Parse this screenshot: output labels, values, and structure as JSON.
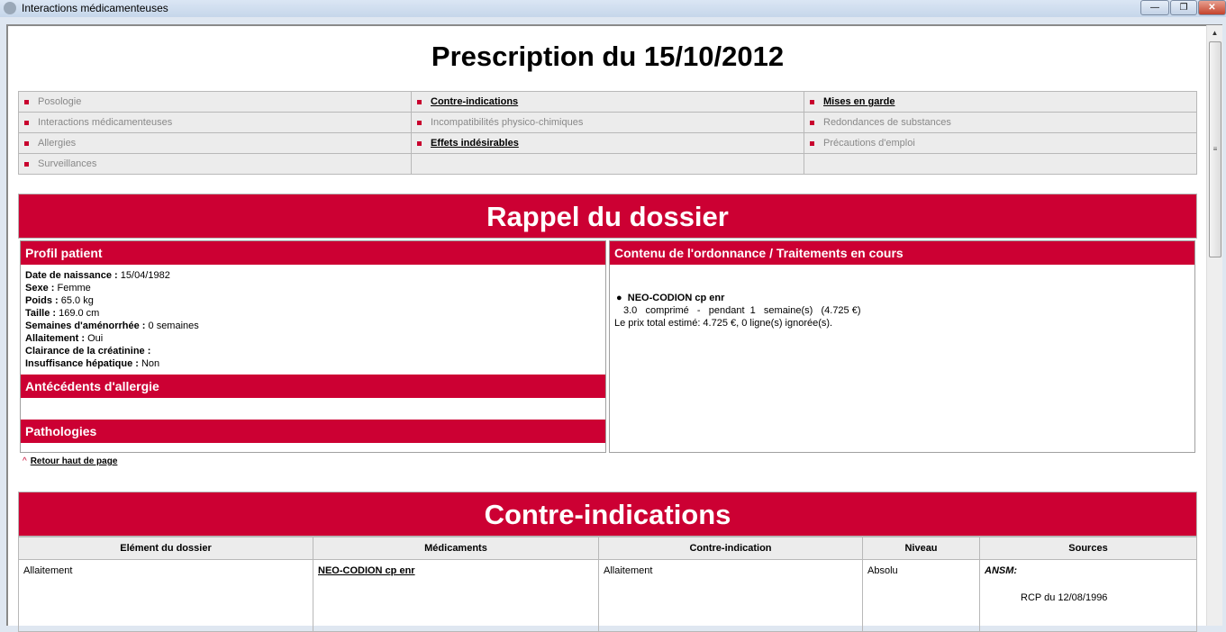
{
  "window": {
    "title": "Interactions médicamenteuses",
    "minimize": "—",
    "restore": "❐",
    "close": "✕"
  },
  "page_title": "Prescription du 15/10/2012",
  "nav": [
    [
      {
        "label": "Posologie",
        "link": false
      },
      {
        "label": "Contre-indications",
        "link": true
      },
      {
        "label": "Mises en garde",
        "link": true
      }
    ],
    [
      {
        "label": "Interactions médicamenteuses",
        "link": false
      },
      {
        "label": "Incompatibilités physico-chimiques",
        "link": false
      },
      {
        "label": "Redondances de substances",
        "link": false
      }
    ],
    [
      {
        "label": "Allergies",
        "link": false
      },
      {
        "label": "Effets indésirables",
        "link": true
      },
      {
        "label": "Précautions d'emploi",
        "link": false
      }
    ],
    [
      {
        "label": "Surveillances",
        "link": false
      },
      {
        "label": "",
        "link": false
      },
      {
        "label": "",
        "link": false
      }
    ]
  ],
  "rappel": {
    "title": "Rappel du dossier",
    "profil_title": "Profil patient",
    "profil": [
      {
        "label": "Date de naissance :",
        "value": "15/04/1982"
      },
      {
        "label": "Sexe :",
        "value": "Femme"
      },
      {
        "label": "Poids :",
        "value": "65.0 kg"
      },
      {
        "label": "Taille :",
        "value": "169.0 cm"
      },
      {
        "label": "Semaines d'aménorrhée :",
        "value": "0 semaines"
      },
      {
        "label": "Allaitement :",
        "value": "Oui"
      },
      {
        "label": "Clairance de la créatinine :",
        "value": ""
      },
      {
        "label": "Insuffisance hépatique :",
        "value": "Non"
      }
    ],
    "allergie_title": "Antécédents d'allergie",
    "pathologies_title": "Pathologies",
    "ordonnance_title": "Contenu de l'ordonnance / Traitements en cours",
    "drug_name": "NEO-CODION cp enr",
    "drug_detail": "3.0   comprimé   -   pendant  1   semaine(s)   (4.725 €)",
    "total": "Le prix total estimé: 4.725 €, 0 ligne(s) ignorée(s)."
  },
  "back_to_top": "Retour haut de page",
  "contre": {
    "title": "Contre-indications",
    "headers": [
      "Elément du dossier",
      "Médicaments",
      "Contre-indication",
      "Niveau",
      "Sources"
    ],
    "row": {
      "element": "Allaitement",
      "medicament": "NEO-CODION cp enr",
      "ci": "Allaitement",
      "niveau": "Absolu",
      "source_org": "ANSM:",
      "source_doc": "RCP du 12/08/1996"
    }
  },
  "colors": {
    "accent": "#cc0033"
  }
}
